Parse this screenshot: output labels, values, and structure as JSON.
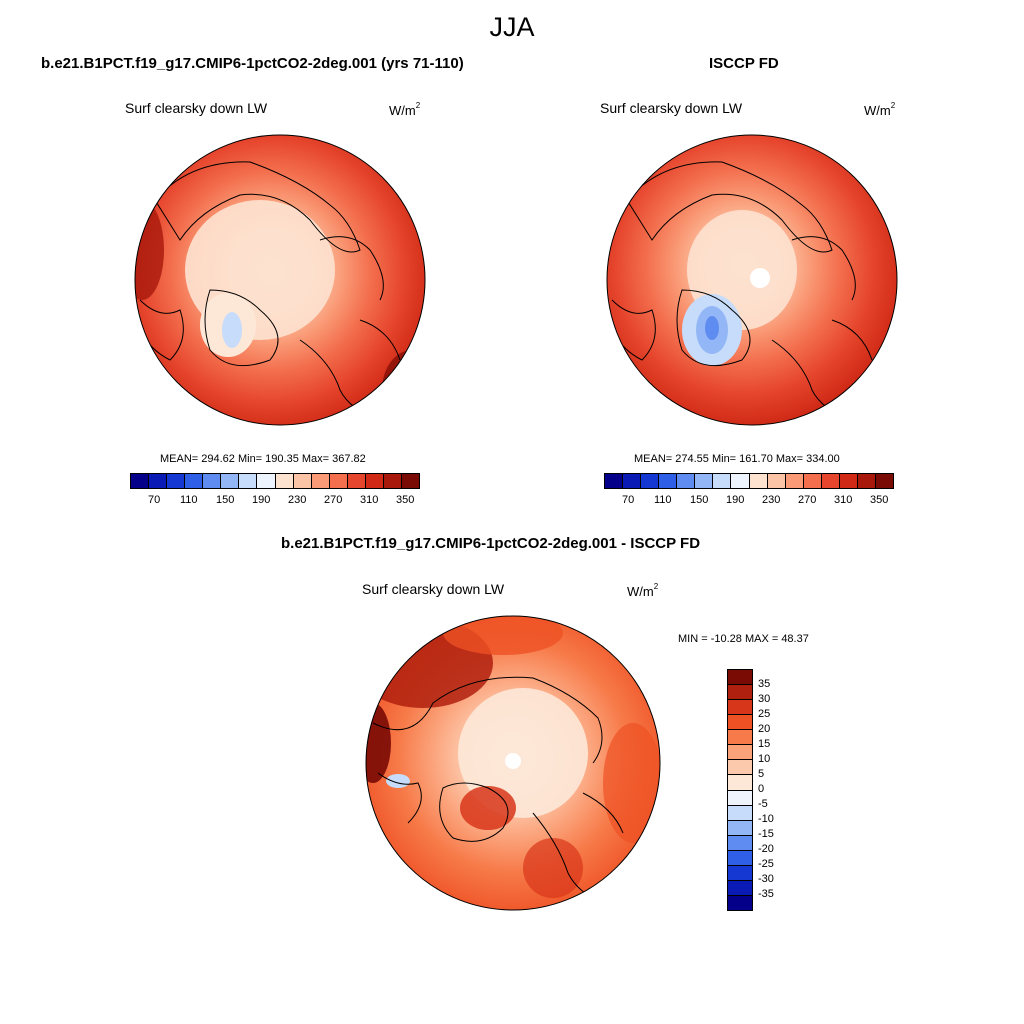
{
  "season": "JJA",
  "panels": [
    {
      "title": "b.e21.B1PCT.f19_g17.CMIP6-1pctCO2-2deg.001 (yrs 71-110)",
      "variable": "Surf clearsky down LW",
      "units_base": "W/m",
      "units_exp": "2",
      "stats": "MEAN= 294.62  Min= 190.35  Max= 367.82",
      "colorbar_ticks": [
        "70",
        "110",
        "150",
        "190",
        "230",
        "270",
        "310",
        "350"
      ]
    },
    {
      "title": "ISCCP FD",
      "variable": "Surf clearsky down LW",
      "units_base": "W/m",
      "units_exp": "2",
      "stats": "MEAN= 274.55  Min= 161.70  Max= 334.00",
      "colorbar_ticks": [
        "70",
        "110",
        "150",
        "190",
        "230",
        "270",
        "310",
        "350"
      ]
    },
    {
      "title": "b.e21.B1PCT.f19_g17.CMIP6-1pctCO2-2deg.001 - ISCCP FD",
      "variable": "Surf clearsky down LW",
      "units_base": "W/m",
      "units_exp": "2",
      "stats": "MIN = -10.28 MAX =  48.37",
      "colorbar_ticks": [
        "35",
        "30",
        "25",
        "20",
        "15",
        "10",
        "5",
        "0",
        "-5",
        "-10",
        "-15",
        "-20",
        "-25",
        "-30",
        "-35"
      ]
    }
  ],
  "colors": {
    "abs_palette": [
      "#05008a",
      "#0a1ab4",
      "#1537d2",
      "#2f5fe6",
      "#5f8cf0",
      "#93b6f6",
      "#c6dcfa",
      "#eef4fd",
      "#fde2d0",
      "#fcc4a6",
      "#fa9a76",
      "#f36f4e",
      "#e6462d",
      "#d02a16",
      "#a8180b",
      "#7a0a04"
    ],
    "diff_palette": [
      "#7a0a04",
      "#b0200e",
      "#d8361a",
      "#ee5124",
      "#f77b4a",
      "#fba27a",
      "#fdc9ac",
      "#fde8d8",
      "#eef3fc",
      "#c6dcfa",
      "#93b6f6",
      "#5f8cf0",
      "#2f5fe6",
      "#1537d2",
      "#0a1ab4",
      "#05008a"
    ],
    "coast": "#000000"
  }
}
